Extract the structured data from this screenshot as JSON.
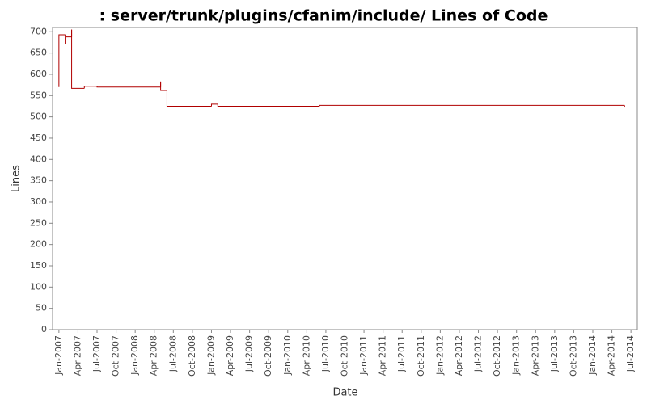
{
  "chart_data": {
    "type": "step-line",
    "title": ": server/trunk/plugins/cfanim/include/ Lines of Code",
    "x_label": "Date",
    "y_label": "Lines",
    "x": [
      "2007-01",
      "2007-01",
      "2007-02",
      "2007-02",
      "2007-03",
      "2007-03",
      "2007-05",
      "2007-07",
      "2008-05",
      "2008-05",
      "2008-06",
      "2009-01",
      "2009-02",
      "2010-06",
      "2014-06",
      "2014-06"
    ],
    "series": [
      {
        "name": "Lines",
        "color": "#b00000",
        "values": [
          570,
          693,
          672,
          688,
          705,
          567,
          572,
          570,
          583,
          562,
          525,
          530,
          525,
          527,
          527,
          522
        ]
      }
    ],
    "xlim": [
      "2006-12",
      "2014-08"
    ],
    "xticks": [
      {
        "value": "2007-01",
        "label": "Jan-2007"
      },
      {
        "value": "2007-04",
        "label": "Apr-2007"
      },
      {
        "value": "2007-07",
        "label": "Jul-2007"
      },
      {
        "value": "2007-10",
        "label": "Oct-2007"
      },
      {
        "value": "2008-01",
        "label": "Jan-2008"
      },
      {
        "value": "2008-04",
        "label": "Apr-2008"
      },
      {
        "value": "2008-07",
        "label": "Jul-2008"
      },
      {
        "value": "2008-10",
        "label": "Oct-2008"
      },
      {
        "value": "2009-01",
        "label": "Jan-2009"
      },
      {
        "value": "2009-04",
        "label": "Apr-2009"
      },
      {
        "value": "2009-07",
        "label": "Jul-2009"
      },
      {
        "value": "2009-10",
        "label": "Oct-2009"
      },
      {
        "value": "2010-01",
        "label": "Jan-2010"
      },
      {
        "value": "2010-04",
        "label": "Apr-2010"
      },
      {
        "value": "2010-07",
        "label": "Jul-2010"
      },
      {
        "value": "2010-10",
        "label": "Oct-2010"
      },
      {
        "value": "2011-01",
        "label": "Jan-2011"
      },
      {
        "value": "2011-04",
        "label": "Apr-2011"
      },
      {
        "value": "2011-07",
        "label": "Jul-2011"
      },
      {
        "value": "2011-10",
        "label": "Oct-2011"
      },
      {
        "value": "2012-01",
        "label": "Jan-2012"
      },
      {
        "value": "2012-04",
        "label": "Apr-2012"
      },
      {
        "value": "2012-07",
        "label": "Jul-2012"
      },
      {
        "value": "2012-10",
        "label": "Oct-2012"
      },
      {
        "value": "2013-01",
        "label": "Jan-2013"
      },
      {
        "value": "2013-04",
        "label": "Apr-2013"
      },
      {
        "value": "2013-07",
        "label": "Jul-2013"
      },
      {
        "value": "2013-10",
        "label": "Oct-2013"
      },
      {
        "value": "2014-01",
        "label": "Jan-2014"
      },
      {
        "value": "2014-04",
        "label": "Apr-2014"
      },
      {
        "value": "2014-07",
        "label": "Jul-2014"
      }
    ],
    "ylim": [
      0,
      710
    ],
    "yticks": [
      0,
      50,
      100,
      150,
      200,
      250,
      300,
      350,
      400,
      450,
      500,
      550,
      600,
      650,
      700
    ],
    "grid": false
  }
}
